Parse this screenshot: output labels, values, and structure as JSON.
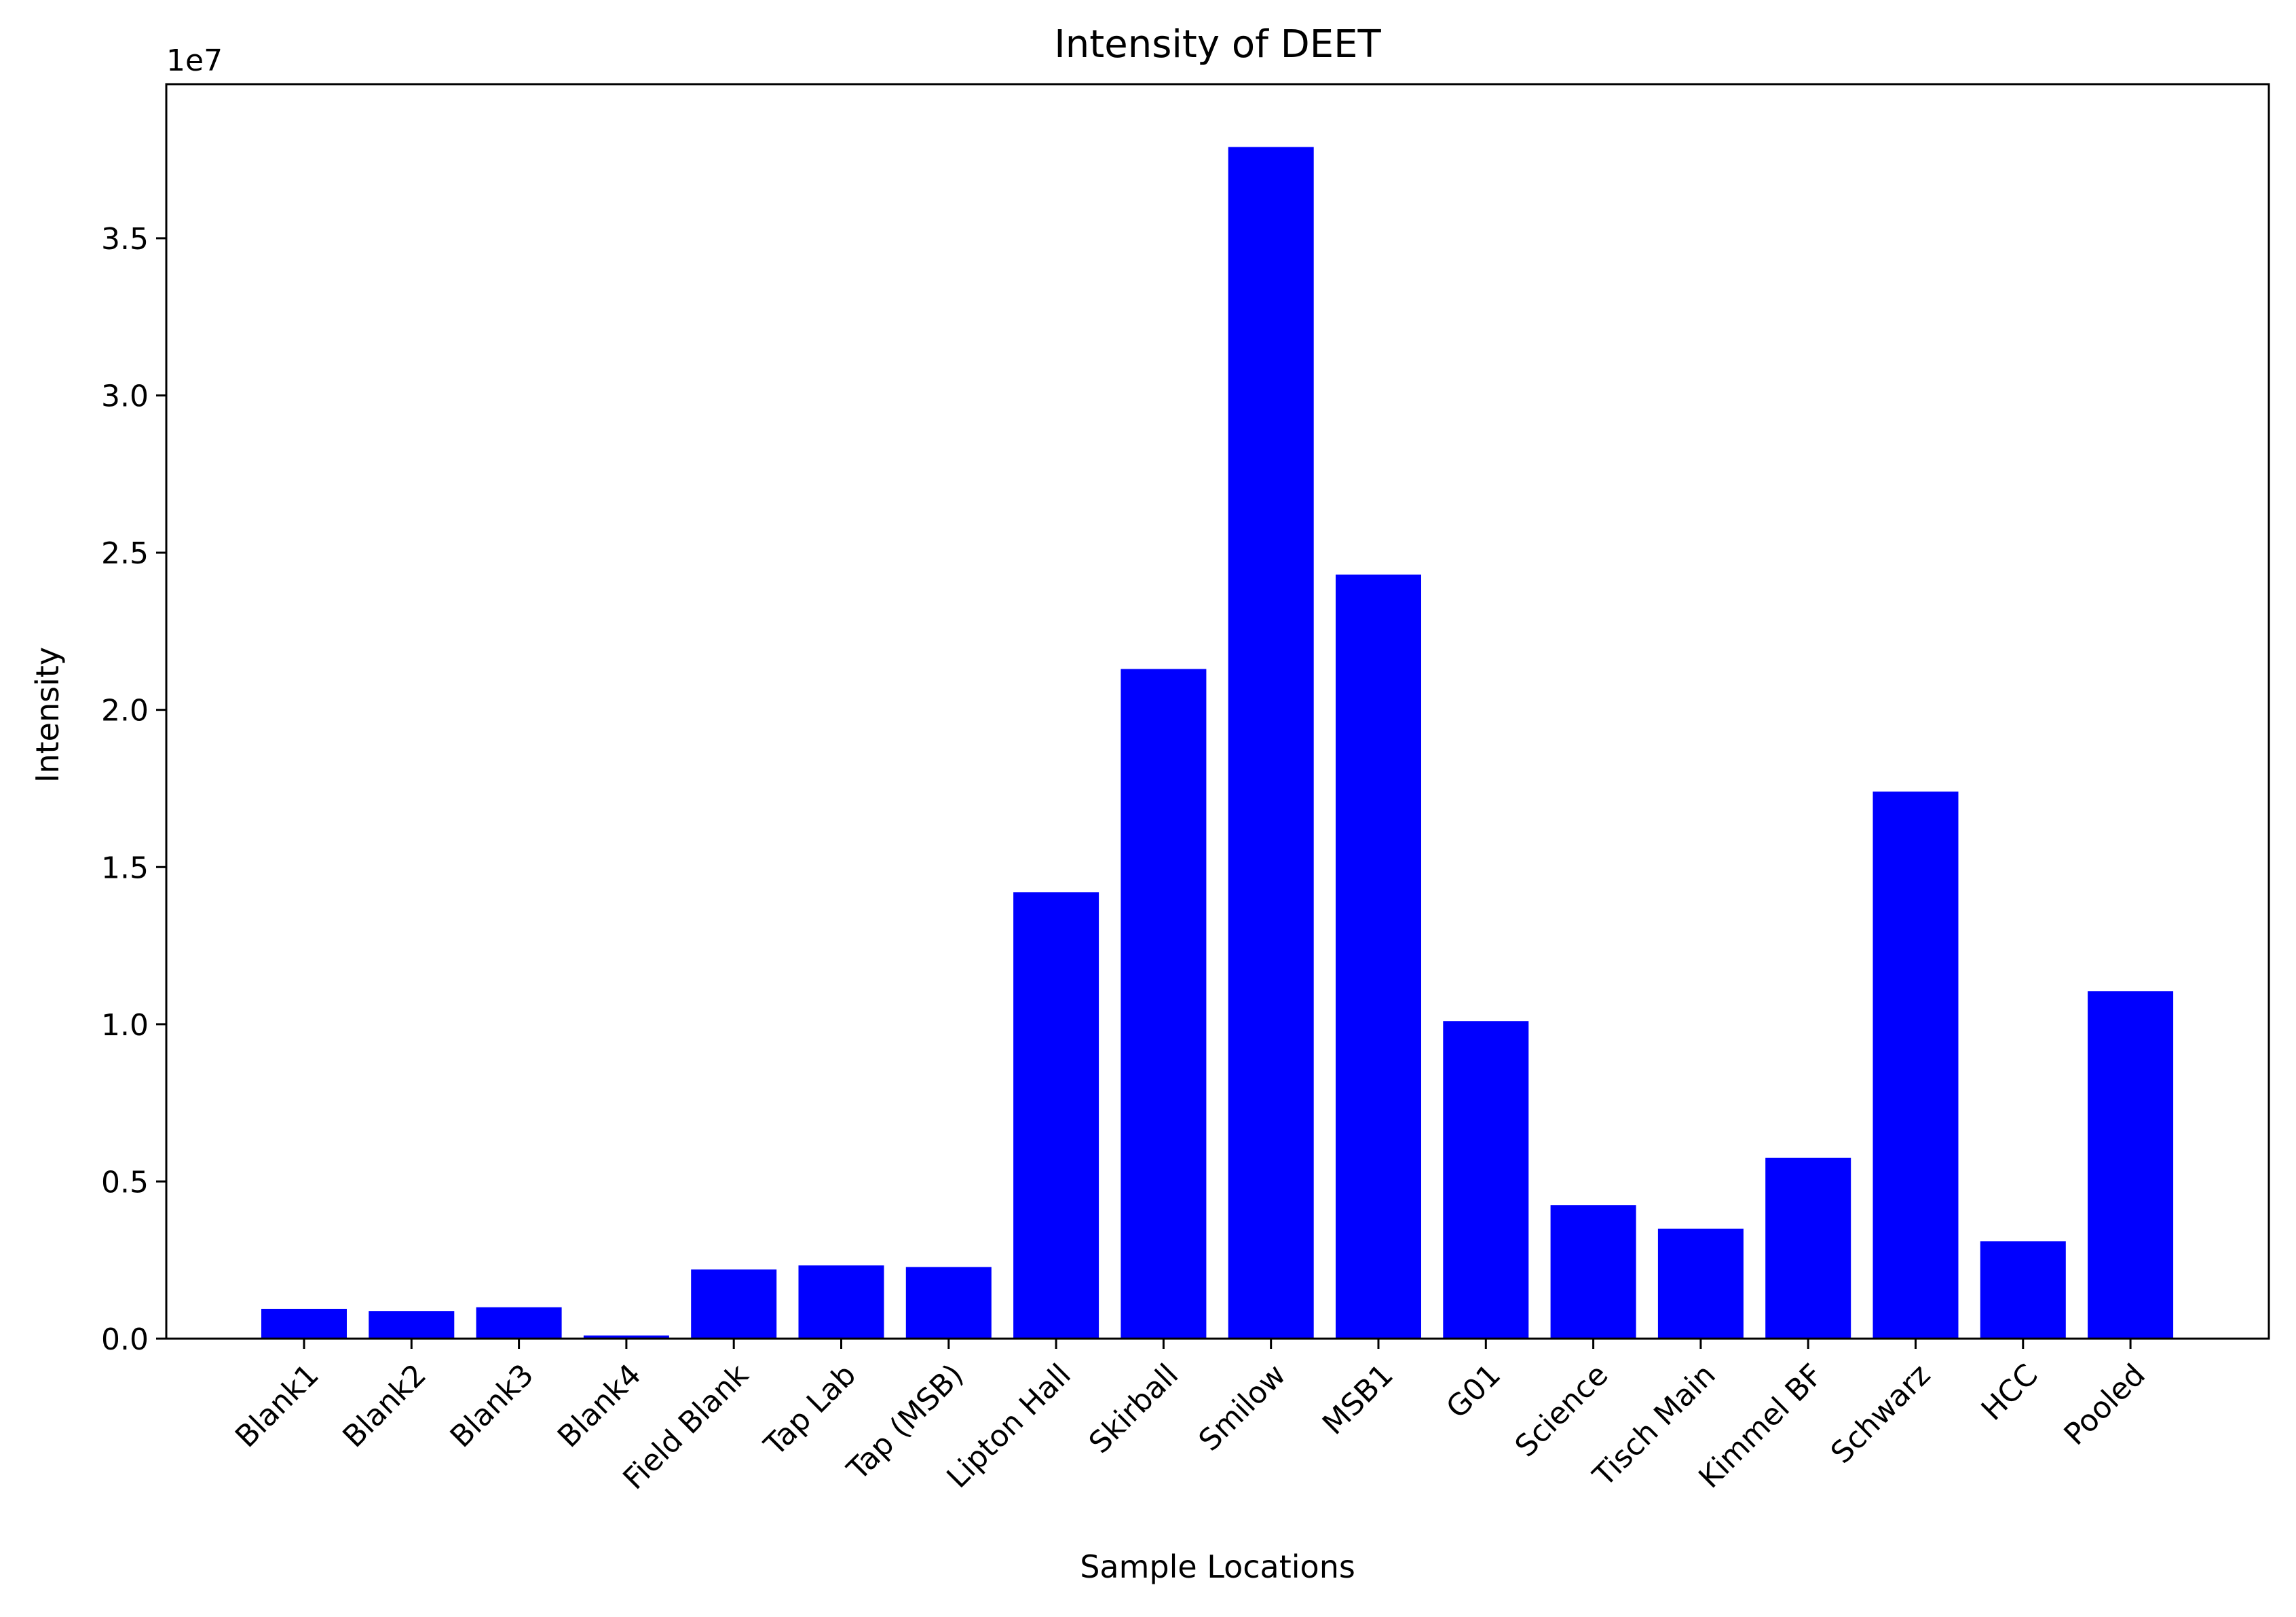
{
  "chart_data": {
    "type": "bar",
    "title": "Intensity of DEET",
    "xlabel": "Sample Locations",
    "ylabel": "Intensity",
    "y_offset_label": "1e7",
    "y_scale": 10000000,
    "ylim": [
      0,
      39900000.0
    ],
    "y_ticks": [
      0,
      5000000,
      10000000,
      15000000,
      20000000,
      25000000,
      30000000,
      35000000
    ],
    "y_tick_labels": [
      "0.0",
      "0.5",
      "1.0",
      "1.5",
      "2.0",
      "2.5",
      "3.0",
      "3.5"
    ],
    "bar_color": "#0000ff",
    "categories": [
      "Blank1",
      "Blank2",
      "Blank3",
      "Blank4",
      "Field Blank",
      "Tap Lab",
      "Tap (MSB)",
      "Lipton Hall",
      "Skirball",
      "Smilow",
      "MSB1",
      "G01",
      "Science",
      "Tisch Main",
      "Kimmel BF",
      "Schwarz",
      "HCC",
      "Pooled"
    ],
    "values": [
      950000,
      880000,
      1000000,
      100000,
      2200000,
      2330000,
      2280000,
      14200000,
      21300000,
      37900000,
      24300000,
      10100000,
      4250000,
      3500000,
      5750000,
      17400000,
      3100000,
      11050000
    ]
  }
}
